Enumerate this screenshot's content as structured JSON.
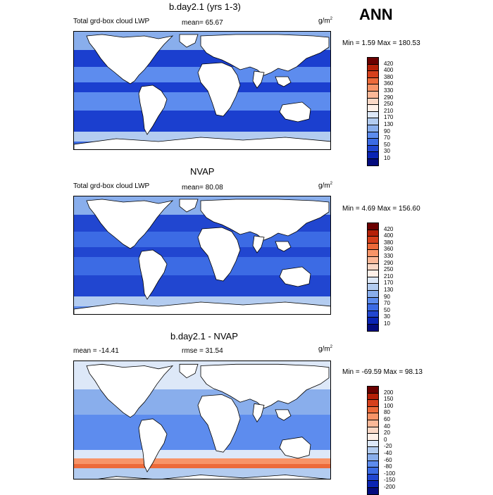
{
  "season": "ANN",
  "panels": [
    {
      "title": "b.day2.1 (yrs 1-3)",
      "left_label": "Total grd-box cloud LWP",
      "center_label": "mean=  65.67",
      "unit": "g/m",
      "unit_sup": "2",
      "minmax": "Min =   1.59 Max = 180.53",
      "colorbar": {
        "labels": [
          "420",
          "400",
          "380",
          "360",
          "330",
          "290",
          "250",
          "210",
          "170",
          "130",
          "90",
          "70",
          "50",
          "30",
          "10"
        ],
        "colors": [
          "#6b0000",
          "#b52008",
          "#d6401c",
          "#ec6a3a",
          "#f79468",
          "#fbb898",
          "#fbd8c6",
          "#fff0e8",
          "#dde8f8",
          "#b3ccf0",
          "#89aeec",
          "#5d8cee",
          "#3c6be4",
          "#2146d0",
          "#0a24b4",
          "#040c7e"
        ]
      },
      "colors": {
        "ocean_base": "#3c6be4",
        "high": "#1b3fcf",
        "mid": "#5d8cee",
        "low": "#89aeec",
        "vlow": "#b3ccf0"
      }
    },
    {
      "title": "NVAP",
      "left_label": "Total grd-box cloud LWP",
      "center_label": "mean=  80.08",
      "unit": "g/m",
      "unit_sup": "2",
      "minmax": "Min =   4.69 Max = 156.60",
      "colorbar": {
        "labels": [
          "420",
          "400",
          "380",
          "360",
          "330",
          "290",
          "250",
          "210",
          "170",
          "130",
          "90",
          "70",
          "50",
          "30",
          "10"
        ],
        "colors": [
          "#6b0000",
          "#b52008",
          "#d6401c",
          "#ec6a3a",
          "#f79468",
          "#fbb898",
          "#fbd8c6",
          "#fff0e8",
          "#dde8f8",
          "#b3ccf0",
          "#89aeec",
          "#5d8cee",
          "#3c6be4",
          "#2146d0",
          "#0a24b4",
          "#040c7e"
        ]
      },
      "colors": {
        "ocean_base": "#5d8cee",
        "high": "#2146d0",
        "mid": "#3c6be4",
        "low": "#89aeec",
        "vlow": "#b3ccf0"
      }
    },
    {
      "title": "b.day2.1 - NVAP",
      "left_label": "mean = -14.41",
      "center_label": "rmse =  31.54",
      "unit": "g/m",
      "unit_sup": "2",
      "minmax": "Min = -69.59 Max =  98.13",
      "colorbar": {
        "labels": [
          "200",
          "150",
          "100",
          "80",
          "60",
          "40",
          "20",
          "0",
          "-20",
          "-40",
          "-60",
          "-80",
          "-100",
          "-150",
          "-200"
        ],
        "colors": [
          "#6b0000",
          "#b52008",
          "#d6401c",
          "#ec6a3a",
          "#f79468",
          "#fbb898",
          "#fbd8c6",
          "#fff0e8",
          "#dde8f8",
          "#b3ccf0",
          "#89aeec",
          "#5d8cee",
          "#3c6be4",
          "#2146d0",
          "#0a24b4",
          "#040c7e"
        ]
      },
      "colors": {
        "ocean_base": "#b3ccf0",
        "high": "#5d8cee",
        "mid": "#89aeec",
        "low": "#dde8f8",
        "warm": "#f79468",
        "hot": "#ec6a3a"
      }
    }
  ]
}
